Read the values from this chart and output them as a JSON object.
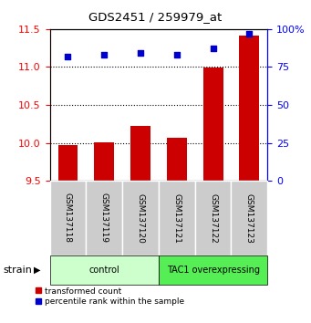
{
  "title": "GDS2451 / 259979_at",
  "samples": [
    "GSM137118",
    "GSM137119",
    "GSM137120",
    "GSM137121",
    "GSM137122",
    "GSM137123"
  ],
  "red_values": [
    9.97,
    10.01,
    10.22,
    10.07,
    10.99,
    11.42
  ],
  "blue_values_pct": [
    82,
    83,
    84,
    83,
    87,
    97
  ],
  "ylim_left": [
    9.5,
    11.5
  ],
  "ylim_right": [
    0,
    100
  ],
  "yticks_left": [
    9.5,
    10.0,
    10.5,
    11.0,
    11.5
  ],
  "yticks_right": [
    0,
    25,
    50,
    75,
    100
  ],
  "ytick_labels_right": [
    "0",
    "25",
    "50",
    "75",
    "100%"
  ],
  "bar_color": "#cc0000",
  "dot_color": "#0000cc",
  "bar_bottom": 9.5,
  "groups": [
    {
      "label": "control",
      "start": 0,
      "end": 3,
      "color": "#ccffcc"
    },
    {
      "label": "TAC1 overexpressing",
      "start": 3,
      "end": 6,
      "color": "#55ee55"
    }
  ],
  "strain_label": "strain",
  "legend_red": "transformed count",
  "legend_blue": "percentile rank within the sample",
  "background_color": "#ffffff"
}
